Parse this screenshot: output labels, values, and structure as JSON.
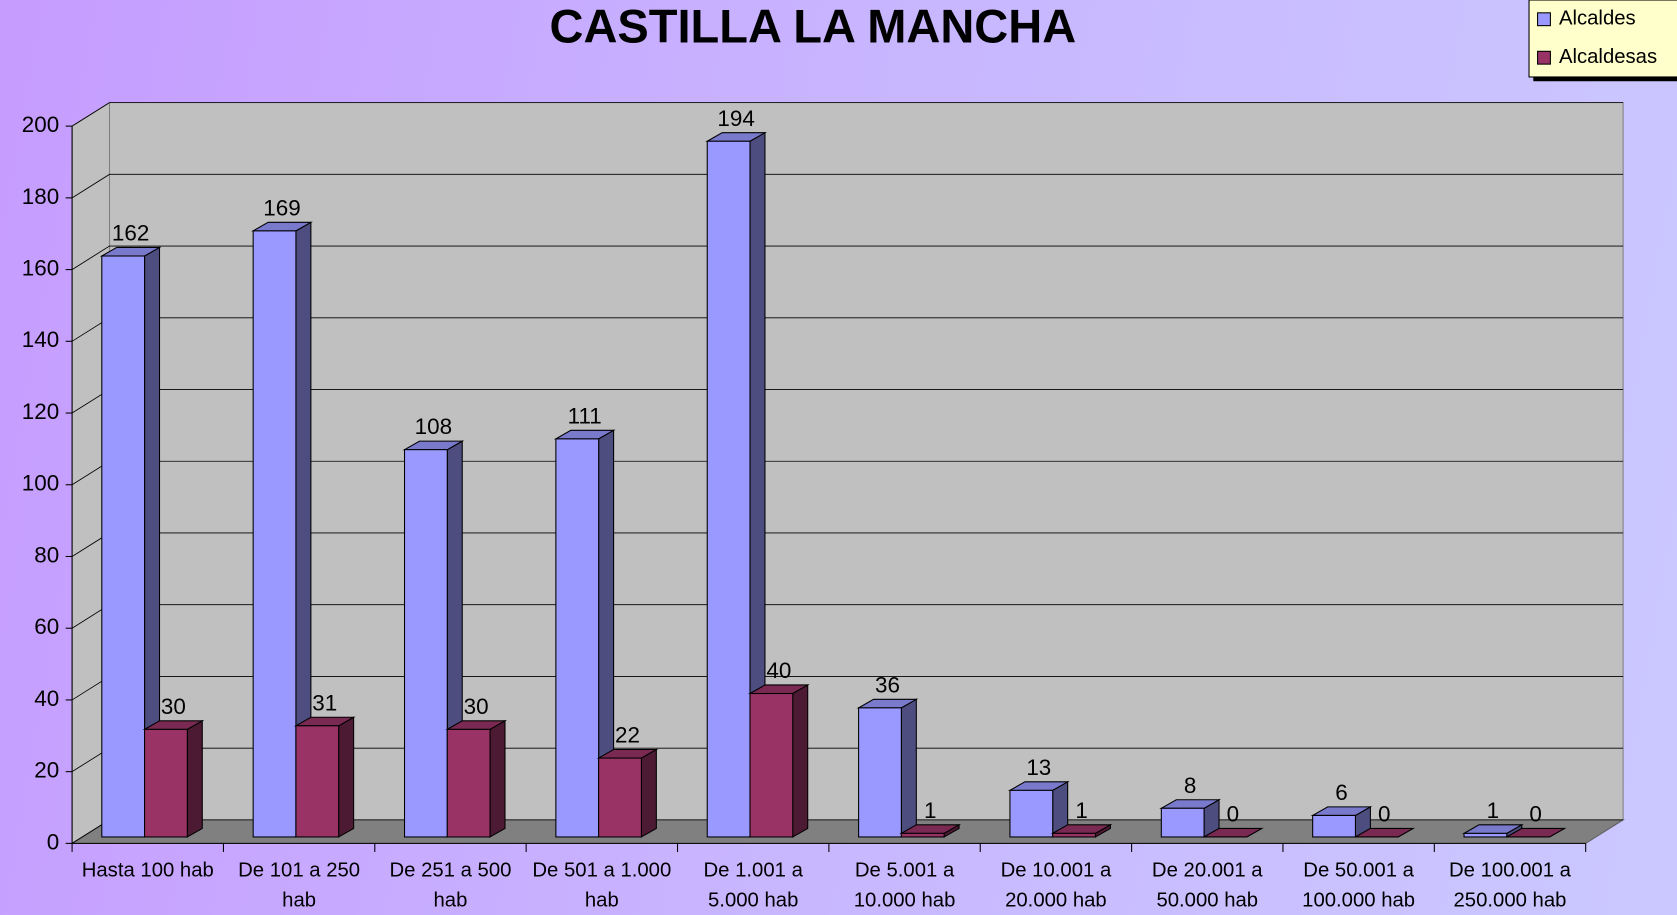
{
  "chart_data": {
    "type": "bar3d",
    "title": "CASTILLA LA MANCHA",
    "categories": [
      "Hasta 100 hab",
      "De 101 a 250 hab",
      "De 251 a 500 hab",
      "De 501 a 1.000 hab",
      "De 1.001 a 5.000 hab",
      "De 5.001 a 10.000 hab",
      "De 10.001 a 20.000 hab",
      "De 20.001 a 50.000 hab",
      "De 50.001 a 100.000 hab",
      "De 100.001 a 250.000 hab"
    ],
    "series": [
      {
        "name": "Alcaldes",
        "color": "#9999ff",
        "values": [
          162,
          169,
          108,
          111,
          194,
          36,
          13,
          8,
          6,
          1
        ]
      },
      {
        "name": "Alcaldesas",
        "color": "#993366",
        "values": [
          30,
          31,
          30,
          22,
          40,
          1,
          1,
          0,
          0,
          0
        ]
      }
    ],
    "ylim": [
      0,
      200
    ],
    "yticks": [
      0,
      20,
      40,
      60,
      80,
      100,
      120,
      140,
      160,
      180,
      200
    ],
    "grid": true,
    "legend": "top-right"
  }
}
